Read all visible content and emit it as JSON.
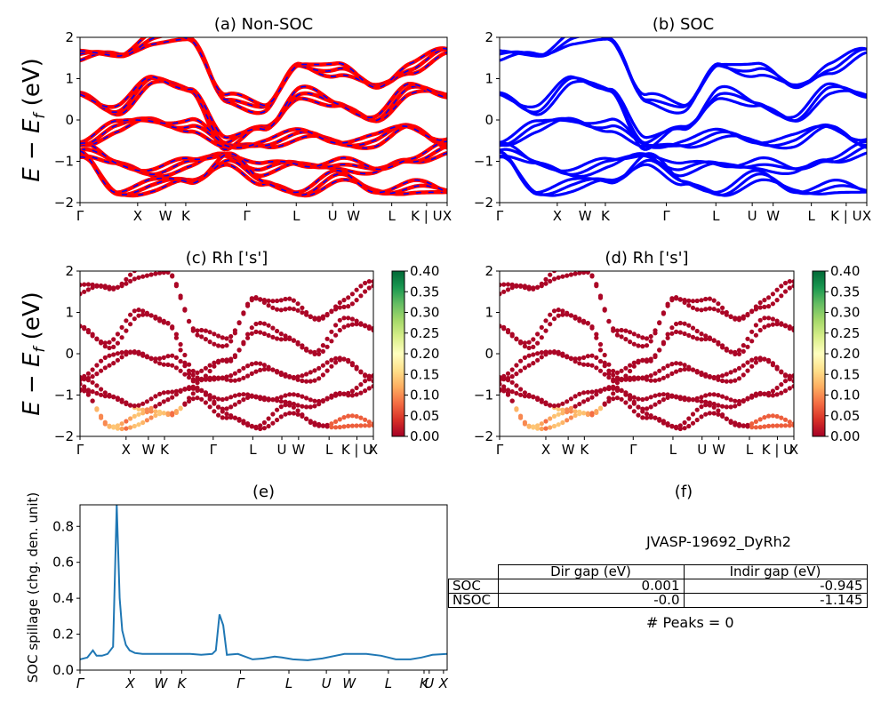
{
  "figure": {
    "ylabel_math": "E − E_f (eV)",
    "kpath_labels": [
      "Γ",
      "X",
      "W",
      "K",
      "Γ",
      "L",
      "U",
      "W",
      "L",
      "K | U",
      "X"
    ],
    "kpath_labels_italic": [
      "Γ",
      "X",
      "W",
      "K",
      "Γ",
      "L",
      "U",
      "W",
      "L",
      "K",
      "U",
      "X"
    ]
  },
  "chart_data": [
    {
      "id": "a",
      "type": "line",
      "title": "(a) Non-SOC",
      "ylabel": "E − E_f (eV)",
      "ylim": [
        -2,
        2
      ],
      "yticks": [
        -2,
        -1,
        0,
        1,
        2
      ],
      "xticks": [
        "Γ",
        "X",
        "W",
        "K",
        "Γ",
        "L",
        "U",
        "W",
        "L",
        "K | U",
        "X"
      ],
      "series": [
        {
          "color": "#ff0000",
          "style": "spin-up bands (thick)"
        },
        {
          "color": "#0000ff",
          "style": "spin-down bands (dashed)"
        }
      ],
      "bands": [
        [
          1.5,
          1.6,
          2.0,
          1.9,
          0.6,
          0.2,
          1.4,
          1.2,
          0.8,
          1.3,
          1.6
        ],
        [
          0.6,
          0.3,
          0.9,
          0.8,
          -0.6,
          -0.2,
          0.7,
          0.3,
          0.1,
          0.7,
          0.6
        ],
        [
          -0.5,
          -0.2,
          0.0,
          -0.1,
          -0.7,
          -0.5,
          -0.4,
          -0.5,
          -0.5,
          -0.2,
          -0.5
        ],
        [
          -0.7,
          -1.1,
          -1.2,
          -1.1,
          -0.8,
          -1.2,
          -1.1,
          -1.0,
          -1.3,
          -0.9,
          -0.7
        ],
        [
          -0.9,
          -1.7,
          -1.6,
          -1.5,
          -0.9,
          -1.6,
          -1.7,
          -1.4,
          -1.7,
          -1.6,
          -1.8
        ]
      ]
    },
    {
      "id": "b",
      "type": "line",
      "title": "(b) SOC",
      "ylim": [
        -2,
        2
      ],
      "yticks": [
        -2,
        -1,
        0,
        1,
        2
      ],
      "xticks": [
        "Γ",
        "X",
        "W",
        "K",
        "Γ",
        "L",
        "U",
        "W",
        "L",
        "K | U",
        "X"
      ],
      "series": [
        {
          "color": "#0000ff",
          "style": "bands"
        }
      ],
      "bands": [
        [
          1.5,
          1.6,
          2.0,
          1.9,
          0.6,
          0.2,
          1.4,
          1.2,
          0.8,
          1.3,
          1.6
        ],
        [
          0.6,
          0.3,
          0.9,
          0.8,
          -0.6,
          -0.2,
          0.7,
          0.3,
          0.1,
          0.7,
          0.6
        ],
        [
          -0.5,
          -0.2,
          0.0,
          -0.1,
          -0.7,
          -0.5,
          -0.4,
          -0.5,
          -0.5,
          -0.2,
          -0.5
        ],
        [
          -0.7,
          -1.1,
          -1.2,
          -1.1,
          -0.8,
          -1.2,
          -1.1,
          -1.0,
          -1.3,
          -0.9,
          -0.7
        ],
        [
          -0.9,
          -1.7,
          -1.6,
          -1.5,
          -0.9,
          -1.6,
          -1.7,
          -1.4,
          -1.7,
          -1.6,
          -1.8
        ]
      ]
    },
    {
      "id": "c",
      "type": "scatter",
      "title": "(c)  Rh ['s']",
      "ylabel": "E − E_f (eV)",
      "ylim": [
        -2,
        2
      ],
      "yticks": [
        -2,
        -1,
        0,
        1,
        2
      ],
      "xticks": [
        "Γ",
        "X",
        "W",
        "K",
        "Γ",
        "L",
        "U",
        "W",
        "L",
        "K | U",
        "X"
      ],
      "colorbar": {
        "colormap": "RdYlGn",
        "ticks": [
          "0.00",
          "0.05",
          "0.10",
          "0.15",
          "0.20",
          "0.25",
          "0.30",
          "0.35",
          "0.40"
        ],
        "range": [
          0,
          0.4
        ]
      }
    },
    {
      "id": "d",
      "type": "scatter",
      "title": "(d) Rh ['s']",
      "ylim": [
        -2,
        2
      ],
      "yticks": [
        -2,
        -1,
        0,
        1,
        2
      ],
      "xticks": [
        "Γ",
        "X",
        "W",
        "K",
        "Γ",
        "L",
        "U",
        "W",
        "L",
        "K | U",
        "X"
      ],
      "colorbar": {
        "colormap": "RdYlGn",
        "ticks": [
          "0.00",
          "0.05",
          "0.10",
          "0.15",
          "0.20",
          "0.25",
          "0.30",
          "0.35",
          "0.40"
        ],
        "range": [
          0,
          0.4
        ]
      }
    },
    {
      "id": "e",
      "type": "line",
      "title": "(e)",
      "ylabel": "SOC spillage (chg. den. unit)",
      "ylim": [
        0,
        0.92
      ],
      "yticks": [
        "0.0",
        "0.2",
        "0.4",
        "0.6",
        "0.8"
      ],
      "xticks": [
        "Γ",
        "X",
        "W",
        "K",
        "Γ",
        "L",
        "U",
        "W",
        "L",
        "K",
        "U",
        "X"
      ],
      "series": [
        {
          "color": "#1f77b4",
          "x": [
            0,
            0.02,
            0.035,
            0.045,
            0.06,
            0.075,
            0.09,
            0.1,
            0.108,
            0.115,
            0.125,
            0.135,
            0.15,
            0.17,
            0.2,
            0.26,
            0.3,
            0.33,
            0.36,
            0.37,
            0.38,
            0.39,
            0.4,
            0.43,
            0.47,
            0.5,
            0.53,
            0.55,
            0.58,
            0.62,
            0.66,
            0.72,
            0.78,
            0.82,
            0.86,
            0.9,
            0.93,
            0.96,
            1.0
          ],
          "y": [
            0.06,
            0.07,
            0.11,
            0.08,
            0.08,
            0.09,
            0.13,
            0.92,
            0.4,
            0.22,
            0.14,
            0.11,
            0.095,
            0.09,
            0.09,
            0.09,
            0.09,
            0.085,
            0.09,
            0.11,
            0.31,
            0.25,
            0.085,
            0.09,
            0.06,
            0.065,
            0.075,
            0.07,
            0.06,
            0.055,
            0.065,
            0.09,
            0.09,
            0.08,
            0.06,
            0.06,
            0.07,
            0.085,
            0.09
          ]
        }
      ]
    },
    {
      "id": "f",
      "type": "table",
      "title": "(f)",
      "subtitle": "JVASP-19692_DyRh2",
      "columns": [
        "Dir gap (eV)",
        "Indir gap (eV)"
      ],
      "rows": [
        {
          "label": "SOC",
          "values": [
            "0.001",
            "-0.945"
          ]
        },
        {
          "label": "NSOC",
          "values": [
            "-0.0",
            "-1.145"
          ]
        }
      ],
      "footer": "# Peaks = 0"
    }
  ]
}
